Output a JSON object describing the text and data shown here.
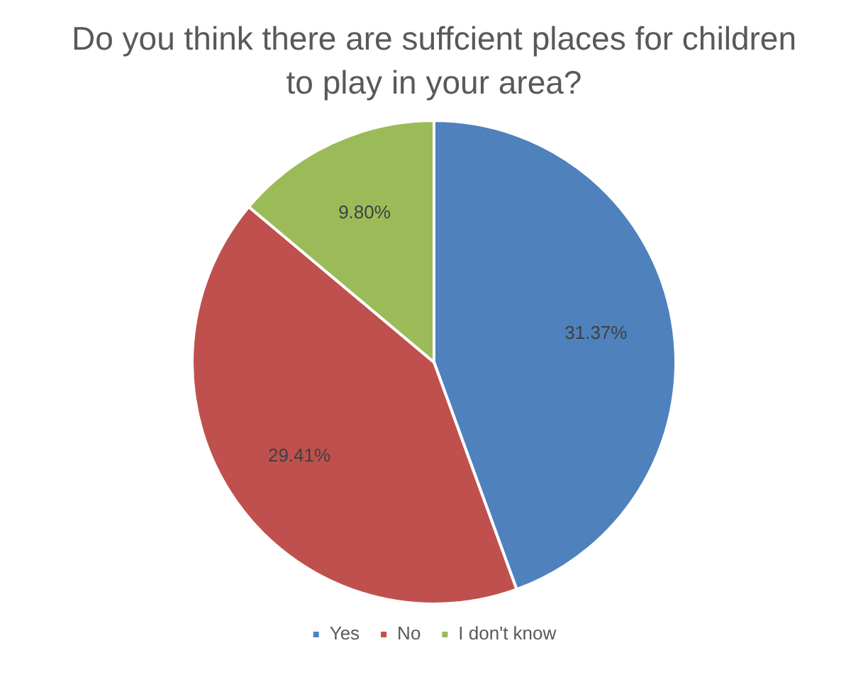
{
  "chart_data": {
    "type": "pie",
    "title": "Do you think there are suffcient places for children to play in your area?",
    "categories": [
      "Yes",
      "No",
      "I don't know"
    ],
    "values": [
      31.37,
      29.41,
      9.8
    ],
    "value_labels": [
      "31.37%",
      "29.41%",
      "9.80%"
    ],
    "colors": [
      "#4f81bd",
      "#c0504d",
      "#9bbb59"
    ],
    "legend": "bottom"
  }
}
